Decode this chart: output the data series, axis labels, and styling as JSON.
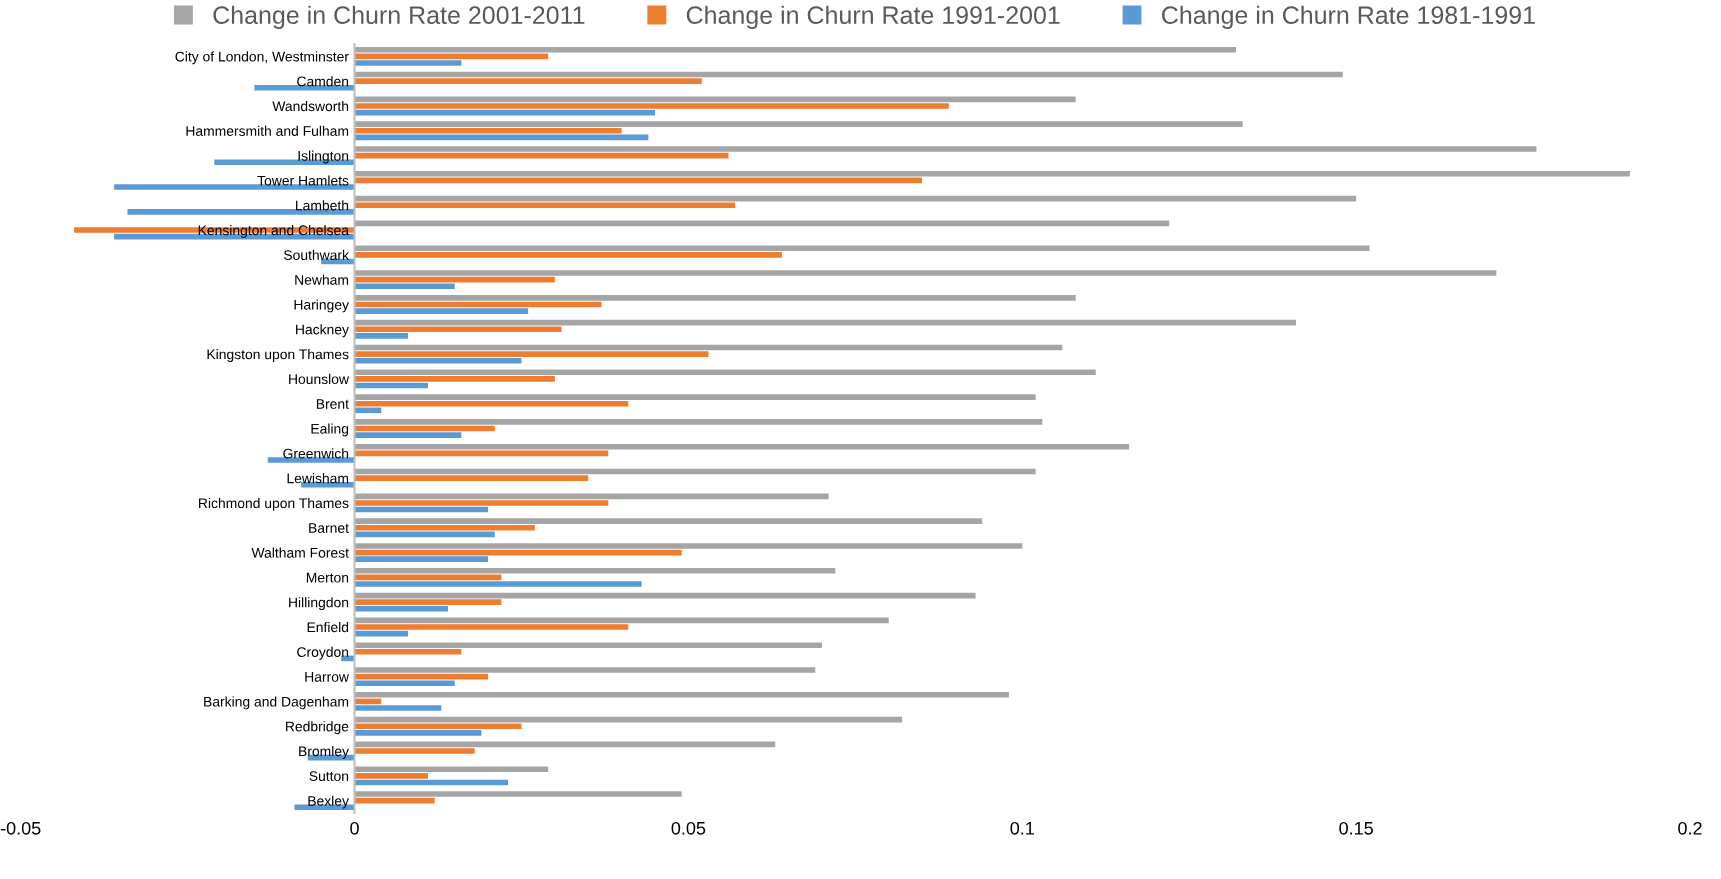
{
  "chart_data": {
    "type": "bar",
    "orientation": "horizontal",
    "legend": "top",
    "categories": [
      "City of London, Westminster",
      "Camden",
      "Wandsworth",
      "Hammersmith and Fulham",
      "Islington",
      "Tower Hamlets",
      "Lambeth",
      "Kensington and Chelsea",
      "Southwark",
      "Newham",
      "Haringey",
      "Hackney",
      "Kingston upon Thames",
      "Hounslow",
      "Brent",
      "Ealing",
      "Greenwich",
      "Lewisham",
      "Richmond upon Thames",
      "Barnet",
      "Waltham Forest",
      "Merton",
      "Hillingdon",
      "Enfield",
      "Croydon",
      "Harrow",
      "Barking and Dagenham",
      "Redbridge",
      "Bromley",
      "Sutton",
      "Bexley"
    ],
    "series": [
      {
        "name": "Change in Churn Rate 2001-2011",
        "color": "#a5a5a5",
        "values": [
          0.132,
          0.148,
          0.108,
          0.133,
          0.177,
          0.191,
          0.15,
          0.122,
          0.152,
          0.171,
          0.108,
          0.141,
          0.106,
          0.111,
          0.102,
          0.103,
          0.116,
          0.102,
          0.071,
          0.094,
          0.1,
          0.072,
          0.093,
          0.08,
          0.07,
          0.069,
          0.098,
          0.082,
          0.063,
          0.029,
          0.049
        ]
      },
      {
        "name": "Change in Churn Rate 1991-2001",
        "color": "#ed7d31",
        "values": [
          0.029,
          0.052,
          0.089,
          0.04,
          0.056,
          0.085,
          0.057,
          -0.042,
          0.064,
          0.03,
          0.037,
          0.031,
          0.053,
          0.03,
          0.041,
          0.021,
          0.038,
          0.035,
          0.038,
          0.027,
          0.049,
          0.022,
          0.022,
          0.041,
          0.016,
          0.02,
          0.004,
          0.025,
          0.018,
          0.011,
          0.012
        ]
      },
      {
        "name": "Change in Churn Rate 1981-1991",
        "color": "#5b9bd5",
        "values": [
          0.016,
          -0.015,
          0.045,
          0.044,
          -0.021,
          -0.036,
          -0.034,
          -0.036,
          -0.005,
          0.015,
          0.026,
          0.008,
          0.025,
          0.011,
          0.004,
          0.016,
          -0.013,
          -0.008,
          0.02,
          0.021,
          0.02,
          0.043,
          0.014,
          0.008,
          -0.002,
          0.015,
          0.013,
          0.019,
          -0.007,
          0.023,
          -0.009
        ]
      }
    ],
    "xlim": [
      -0.05,
      0.2
    ],
    "xticks": [
      -0.05,
      0,
      0.05,
      0.1,
      0.15,
      0.2
    ]
  }
}
